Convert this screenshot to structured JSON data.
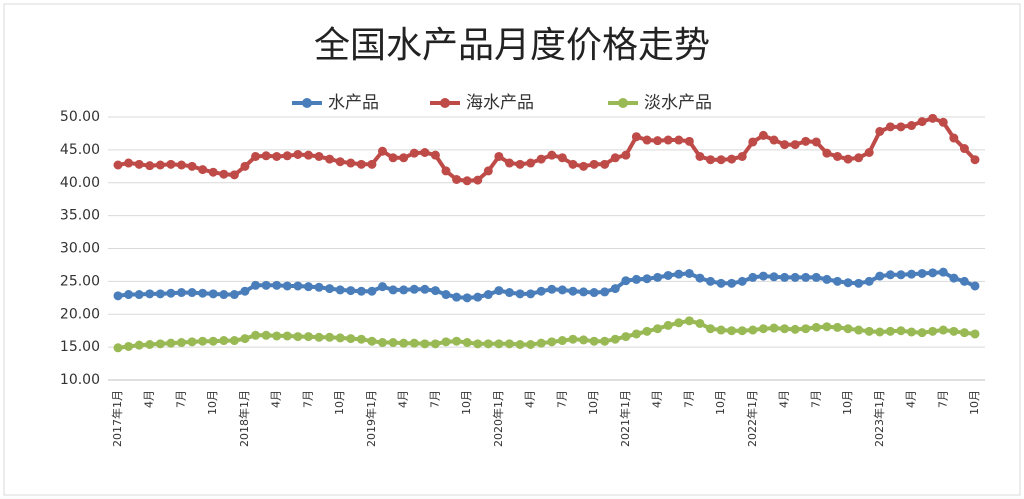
{
  "chart_data": {
    "type": "line",
    "title": "全国水产品月度价格走势",
    "categories": [
      "2017年1月",
      null,
      null,
      "4月",
      null,
      null,
      "7月",
      null,
      null,
      "10月",
      null,
      null,
      "2018年1月",
      null,
      null,
      "4月",
      null,
      null,
      "7月",
      null,
      null,
      "10月",
      null,
      null,
      "2019年1月",
      null,
      null,
      "4月",
      null,
      null,
      "7月",
      null,
      null,
      "10月",
      null,
      null,
      "2020年1月",
      null,
      null,
      "4月",
      null,
      null,
      "7月",
      null,
      null,
      "10月",
      null,
      null,
      "2021年1月",
      null,
      null,
      "4月",
      null,
      null,
      "7月",
      null,
      null,
      "10月",
      null,
      null,
      "2022年1月",
      null,
      null,
      "4月",
      null,
      null,
      "7月",
      null,
      null,
      "10月",
      null,
      null,
      "2023年1月",
      null,
      null,
      "4月",
      null,
      null,
      "7月",
      null,
      null,
      "10月"
    ],
    "series": [
      {
        "name": "水产品",
        "color": "#4a7ebb",
        "values": [
          22.8,
          23.0,
          23.0,
          23.1,
          23.1,
          23.2,
          23.3,
          23.3,
          23.2,
          23.1,
          23.0,
          23.0,
          23.5,
          24.4,
          24.4,
          24.4,
          24.3,
          24.3,
          24.2,
          24.1,
          23.9,
          23.7,
          23.6,
          23.5,
          23.5,
          24.2,
          23.7,
          23.7,
          23.8,
          23.8,
          23.6,
          23.0,
          22.6,
          22.5,
          22.6,
          23.0,
          23.6,
          23.3,
          23.1,
          23.1,
          23.5,
          23.8,
          23.7,
          23.5,
          23.4,
          23.3,
          23.4,
          23.9,
          25.1,
          25.3,
          25.4,
          25.6,
          25.9,
          26.1,
          26.2,
          25.5,
          25.0,
          24.7,
          24.7,
          25.0,
          25.6,
          25.8,
          25.7,
          25.6,
          25.6,
          25.6,
          25.6,
          25.3,
          25.0,
          24.8,
          24.7,
          25.0,
          25.8,
          26.0,
          26.0,
          26.1,
          26.2,
          26.3,
          26.4,
          25.5,
          25.0,
          24.3
        ]
      },
      {
        "name": "海水产品",
        "color": "#be4b48",
        "values": [
          42.7,
          43.0,
          42.8,
          42.6,
          42.7,
          42.8,
          42.7,
          42.5,
          42.0,
          41.6,
          41.3,
          41.2,
          42.5,
          44.0,
          44.1,
          44.0,
          44.1,
          44.3,
          44.2,
          44.0,
          43.6,
          43.2,
          43.0,
          42.8,
          42.8,
          44.8,
          43.8,
          43.8,
          44.5,
          44.6,
          44.2,
          41.8,
          40.5,
          40.3,
          40.4,
          41.8,
          44.0,
          43.0,
          42.8,
          43.0,
          43.6,
          44.2,
          43.8,
          42.8,
          42.5,
          42.8,
          42.8,
          43.8,
          44.2,
          47.0,
          46.5,
          46.4,
          46.5,
          46.5,
          46.3,
          44.0,
          43.5,
          43.5,
          43.6,
          44.0,
          46.2,
          47.2,
          46.5,
          45.8,
          45.8,
          46.3,
          46.2,
          44.5,
          44.0,
          43.6,
          43.8,
          44.6,
          47.8,
          48.5,
          48.5,
          48.7,
          49.3,
          49.8,
          49.2,
          46.8,
          45.2,
          43.5
        ]
      },
      {
        "name": "淡水产品",
        "color": "#98b954",
        "values": [
          14.9,
          15.1,
          15.3,
          15.4,
          15.5,
          15.6,
          15.7,
          15.8,
          15.9,
          15.9,
          16.0,
          16.0,
          16.3,
          16.8,
          16.8,
          16.7,
          16.7,
          16.6,
          16.6,
          16.5,
          16.5,
          16.4,
          16.3,
          16.2,
          15.9,
          15.7,
          15.7,
          15.6,
          15.6,
          15.5,
          15.5,
          15.8,
          15.9,
          15.7,
          15.5,
          15.5,
          15.5,
          15.5,
          15.4,
          15.4,
          15.6,
          15.8,
          16.0,
          16.2,
          16.1,
          15.9,
          15.9,
          16.2,
          16.6,
          17.0,
          17.4,
          17.8,
          18.3,
          18.7,
          19.0,
          18.6,
          17.8,
          17.6,
          17.5,
          17.5,
          17.6,
          17.8,
          17.9,
          17.8,
          17.7,
          17.8,
          18.0,
          18.1,
          18.0,
          17.8,
          17.6,
          17.4,
          17.3,
          17.4,
          17.5,
          17.3,
          17.2,
          17.4,
          17.6,
          17.4,
          17.2,
          17.0
        ]
      }
    ],
    "ylim": [
      10,
      50
    ],
    "yticks": [
      {
        "value": 10,
        "label": "10.00"
      },
      {
        "value": 15,
        "label": "15.00"
      },
      {
        "value": 20,
        "label": "20.00"
      },
      {
        "value": 25,
        "label": "25.00"
      },
      {
        "value": 30,
        "label": "30.00"
      },
      {
        "value": 35,
        "label": "35.00"
      },
      {
        "value": 40,
        "label": "40.00"
      },
      {
        "value": 45,
        "label": "45.00"
      },
      {
        "value": 50,
        "label": "50.00"
      }
    ],
    "grid": true,
    "legend": "top"
  }
}
